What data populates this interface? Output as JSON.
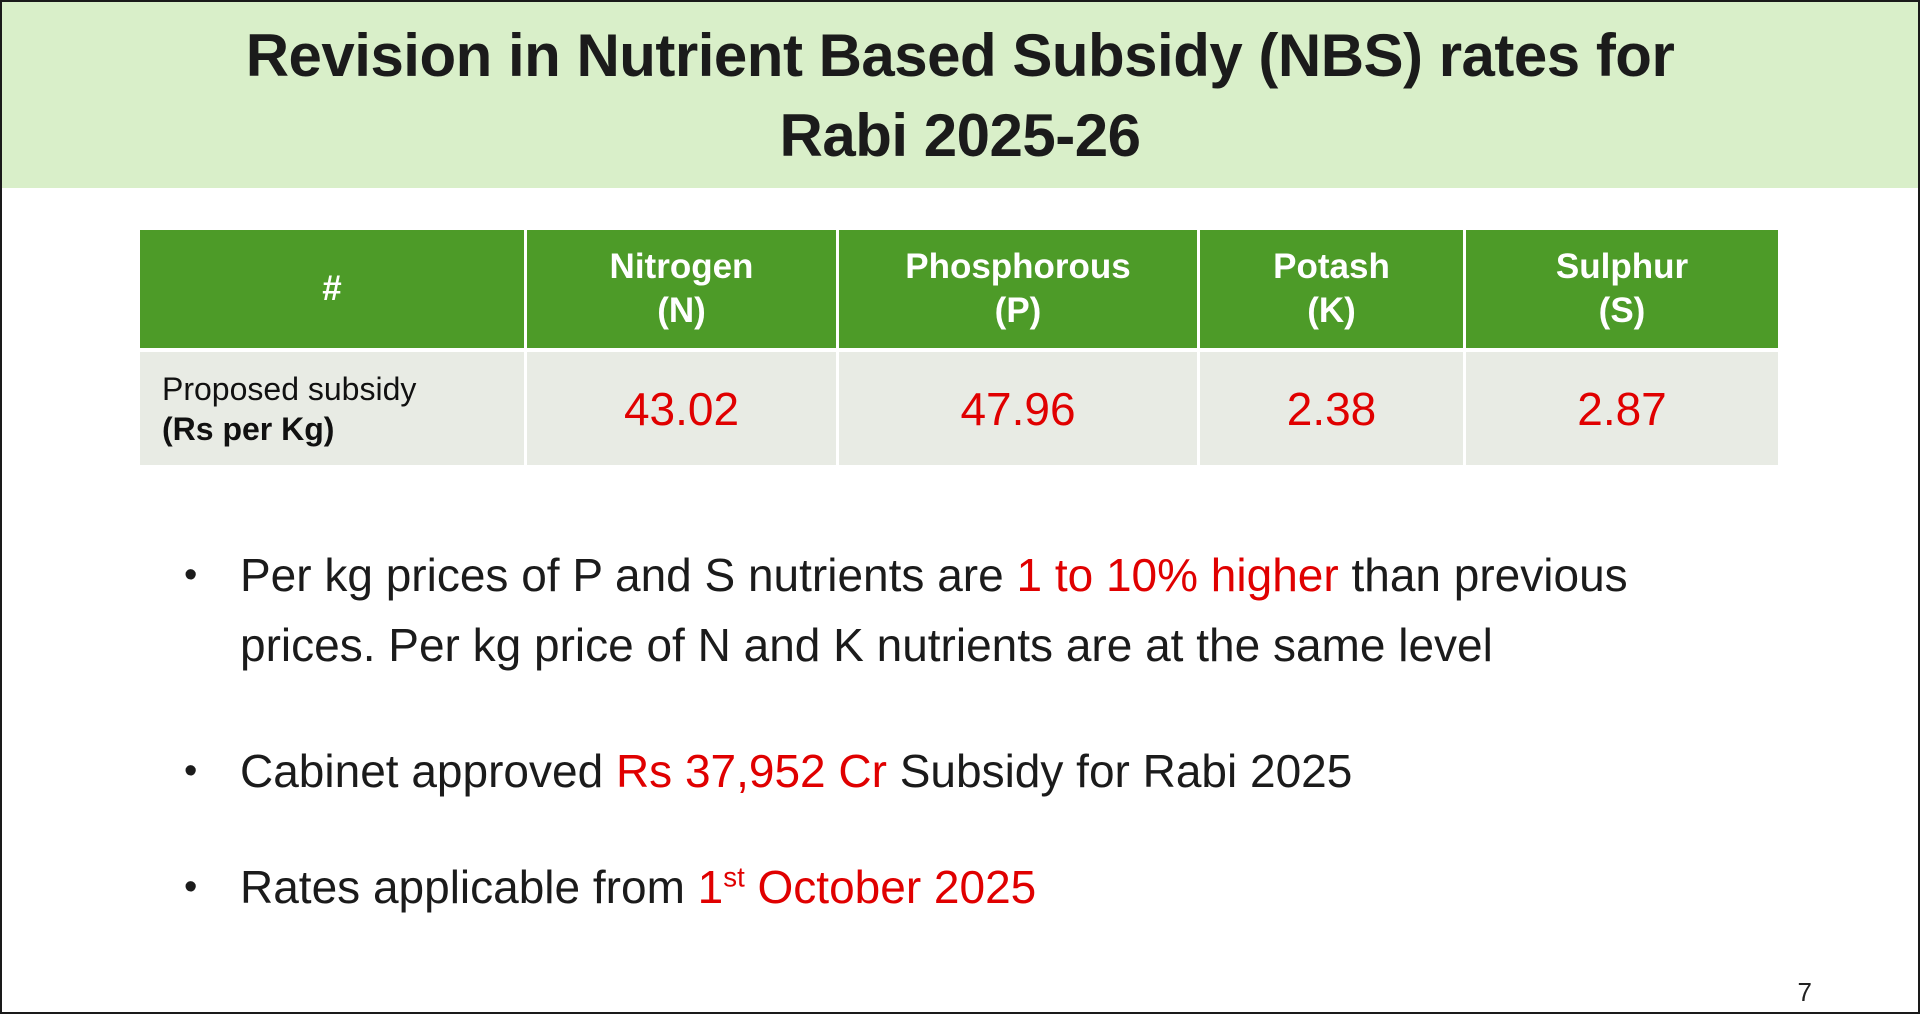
{
  "title": {
    "line1": "Revision in Nutrient Based Subsidy (NBS) rates for",
    "line2": "Rabi 2025-26"
  },
  "colors": {
    "title_band_bg": "#d9efc9",
    "header_green": "#4d9b28",
    "row_bg": "#e8ebe4",
    "accent_red": "#e00000",
    "text_dark": "#1b1b1b"
  },
  "table": {
    "headers": [
      {
        "name": "#",
        "sub": ""
      },
      {
        "name": "Nitrogen",
        "sub": "(N)"
      },
      {
        "name": "Phosphorous",
        "sub": "(P)"
      },
      {
        "name": "Potash",
        "sub": "(K)"
      },
      {
        "name": "Sulphur",
        "sub": "(S)"
      }
    ],
    "row": {
      "label_line1": "Proposed subsidy",
      "label_line2": "(Rs per Kg)",
      "values": [
        "43.02",
        "47.96",
        "2.38",
        "2.87"
      ]
    }
  },
  "list_glyph": "•",
  "bullets": [
    {
      "segments": [
        {
          "text": "Per kg prices of P and S nutrients are ",
          "color": "dark"
        },
        {
          "text": "1 to 10% higher",
          "color": "red"
        },
        {
          "text": " than previous prices. Per kg price of N and K nutrients are at the same level",
          "color": "dark"
        }
      ]
    },
    {
      "segments": [
        {
          "text": "Cabinet approved ",
          "color": "dark"
        },
        {
          "text": "Rs 37,952 Cr",
          "color": "red"
        },
        {
          "text": " Subsidy for Rabi 2025",
          "color": "dark"
        }
      ]
    },
    {
      "segments": [
        {
          "text": "Rates applicable from ",
          "color": "dark"
        },
        {
          "text": "1",
          "color": "red"
        },
        {
          "text": "st",
          "color": "red",
          "sup": true
        },
        {
          "text": " October 2025",
          "color": "red"
        }
      ]
    }
  ],
  "page_number": "7"
}
